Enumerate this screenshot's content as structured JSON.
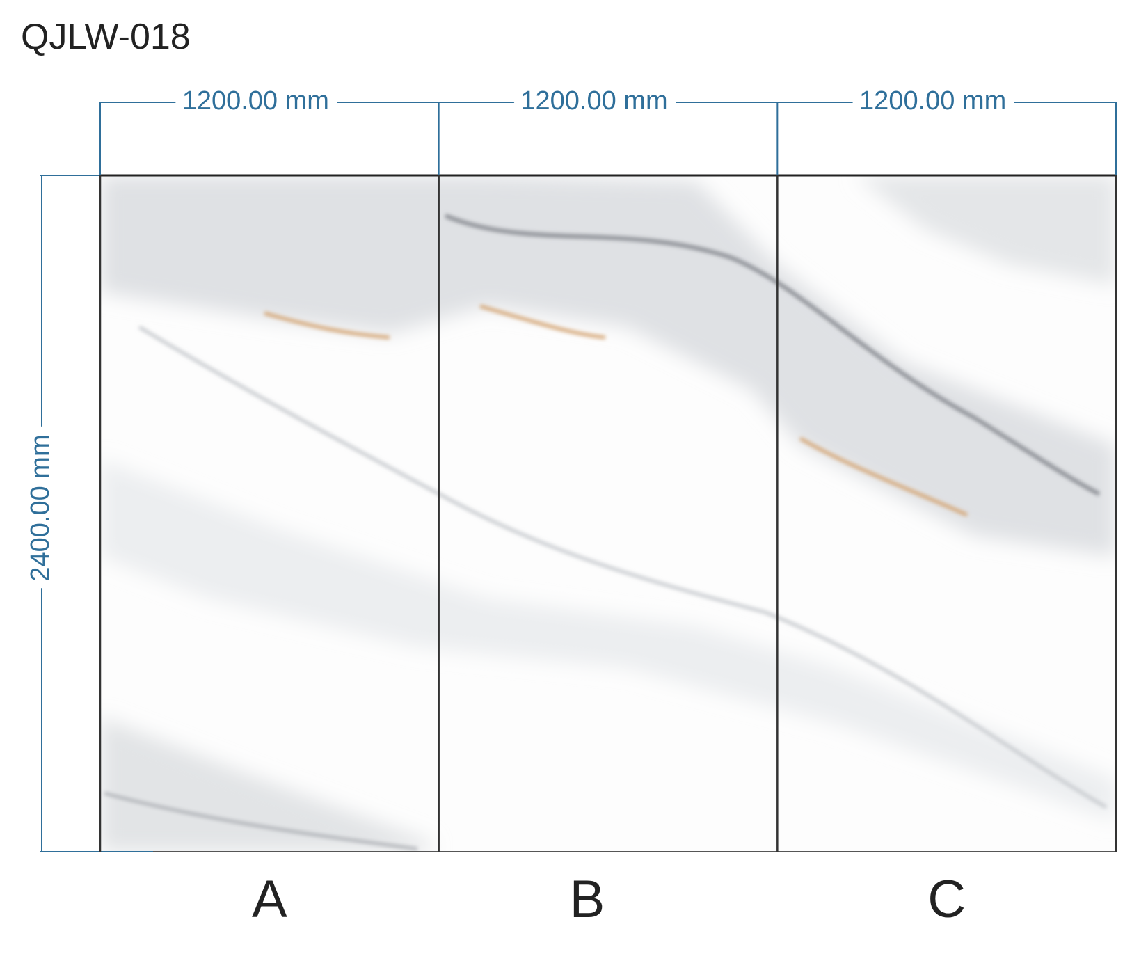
{
  "title": "QJLW-018",
  "height": "2400.00 mm",
  "panels": [
    {
      "label": "A",
      "width": "1200.00 mm"
    },
    {
      "label": "B",
      "width": "1200.00 mm"
    },
    {
      "label": "C",
      "width": "1200.00 mm"
    }
  ]
}
